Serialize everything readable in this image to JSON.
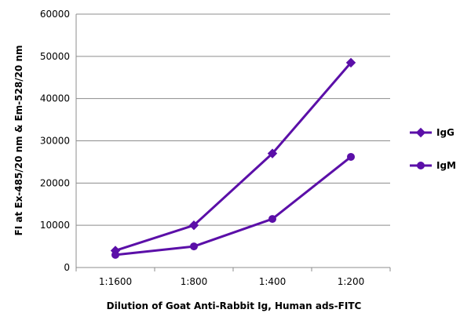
{
  "chart_data": {
    "type": "line",
    "title": "",
    "xlabel": "Dilution of Goat Anti-Rabbit Ig, Human ads-FITC",
    "ylabel": "FI at Ex-485/20 nm & Em-528/20 nm",
    "categories": [
      "1:1600",
      "1:800",
      "1:400",
      "1:200"
    ],
    "ylim": [
      0,
      60000
    ],
    "yticks": [
      0,
      10000,
      20000,
      30000,
      40000,
      50000,
      60000
    ],
    "ytick_labels": [
      "0",
      "10000",
      "20000",
      "30000",
      "40000",
      "50000",
      "60000"
    ],
    "grid": "horizontal",
    "legend_position": "right",
    "series": [
      {
        "name": "IgG",
        "marker": "diamond",
        "color": "#5B0FA8",
        "values": [
          4000,
          10000,
          27000,
          48500
        ]
      },
      {
        "name": "IgM",
        "marker": "circle",
        "color": "#5B0FA8",
        "values": [
          3000,
          5000,
          11500,
          26200
        ]
      }
    ]
  }
}
